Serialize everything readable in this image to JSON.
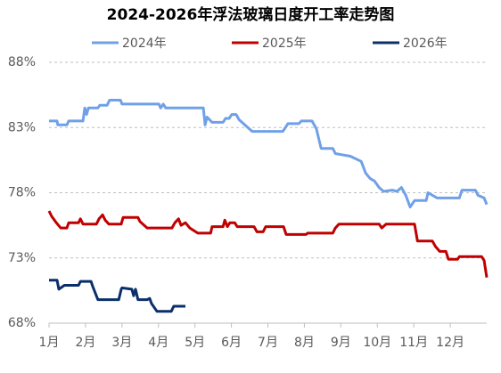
{
  "chart_data": {
    "type": "line",
    "title": "2024-2026年浮法玻璃日度开工率走势图",
    "xlim": [
      1,
      13
    ],
    "xticks": [
      {
        "value": 1,
        "label": "1月"
      },
      {
        "value": 2,
        "label": "2月"
      },
      {
        "value": 3,
        "label": "3月"
      },
      {
        "value": 4,
        "label": "4月"
      },
      {
        "value": 5,
        "label": "5月"
      },
      {
        "value": 6,
        "label": "6月"
      },
      {
        "value": 7,
        "label": "7月"
      },
      {
        "value": 8,
        "label": "8月"
      },
      {
        "value": 9,
        "label": "9月"
      },
      {
        "value": 10,
        "label": "10月"
      },
      {
        "value": 11,
        "label": "11月"
      },
      {
        "value": 12,
        "label": "12月"
      }
    ],
    "ylim": [
      68,
      88
    ],
    "yticks": [
      {
        "value": 68,
        "label": "68%"
      },
      {
        "value": 73,
        "label": "73%"
      },
      {
        "value": 78,
        "label": "78%"
      },
      {
        "value": 83,
        "label": "83%"
      },
      {
        "value": 88,
        "label": "88%"
      }
    ],
    "grid": true,
    "series": [
      {
        "name": "2024年",
        "color": "#6fa0e8",
        "x": [
          1.0,
          1.22,
          1.24,
          1.49,
          1.54,
          1.93,
          1.98,
          2.03,
          2.08,
          2.34,
          2.39,
          2.59,
          2.66,
          2.96,
          3.0,
          4.01,
          4.06,
          4.13,
          4.2,
          5.23,
          5.28,
          5.33,
          5.47,
          5.77,
          5.84,
          5.94,
          6.01,
          6.13,
          6.21,
          6.57,
          7.41,
          7.48,
          7.55,
          7.85,
          7.92,
          8.21,
          8.33,
          8.46,
          8.78,
          8.85,
          9.26,
          9.56,
          9.68,
          9.8,
          9.92,
          10.05,
          10.17,
          10.41,
          10.54,
          10.66,
          10.78,
          10.9,
          11.02,
          11.34,
          11.39,
          11.64,
          12.25,
          12.32,
          12.69,
          12.76,
          12.93,
          13.0
        ],
        "values": [
          83.5,
          83.5,
          83.2,
          83.2,
          83.5,
          83.5,
          84.5,
          84.0,
          84.5,
          84.5,
          84.7,
          84.7,
          85.1,
          85.1,
          84.8,
          84.8,
          84.5,
          84.8,
          84.5,
          84.5,
          83.2,
          83.8,
          83.4,
          83.4,
          83.7,
          83.7,
          84.0,
          84.0,
          83.6,
          82.7,
          82.7,
          83.0,
          83.3,
          83.3,
          83.5,
          83.5,
          82.9,
          81.4,
          81.4,
          81.0,
          80.8,
          80.4,
          79.5,
          79.1,
          78.9,
          78.4,
          78.1,
          78.2,
          78.1,
          78.4,
          77.8,
          76.9,
          77.4,
          77.4,
          78.0,
          77.6,
          77.6,
          78.2,
          78.2,
          77.8,
          77.6,
          77.1
        ]
      },
      {
        "name": "2025年",
        "color": "#c00000",
        "x": [
          1.0,
          1.07,
          1.2,
          1.32,
          1.49,
          1.54,
          1.81,
          1.86,
          1.93,
          2.3,
          2.37,
          2.47,
          2.54,
          2.64,
          2.98,
          3.03,
          3.44,
          3.49,
          3.69,
          4.37,
          4.45,
          4.55,
          4.62,
          4.74,
          4.86,
          5.08,
          5.43,
          5.47,
          5.77,
          5.82,
          5.89,
          5.96,
          6.09,
          6.16,
          6.62,
          6.7,
          6.87,
          6.94,
          7.43,
          7.5,
          8.04,
          8.09,
          8.78,
          8.85,
          8.95,
          10.05,
          10.12,
          10.24,
          11.02,
          11.1,
          11.51,
          11.59,
          11.71,
          11.88,
          11.95,
          12.2,
          12.25,
          12.86,
          12.93,
          13.0
        ],
        "values": [
          76.6,
          76.2,
          75.7,
          75.3,
          75.3,
          75.7,
          75.7,
          76.0,
          75.6,
          75.6,
          76.0,
          76.3,
          75.9,
          75.6,
          75.6,
          76.1,
          76.1,
          75.8,
          75.3,
          75.3,
          75.7,
          76.0,
          75.5,
          75.7,
          75.3,
          74.9,
          74.9,
          75.4,
          75.4,
          75.9,
          75.4,
          75.7,
          75.7,
          75.4,
          75.4,
          75.0,
          75.0,
          75.4,
          75.4,
          74.8,
          74.8,
          74.9,
          74.9,
          75.3,
          75.6,
          75.6,
          75.3,
          75.6,
          75.6,
          74.3,
          74.3,
          73.9,
          73.5,
          73.5,
          72.9,
          72.9,
          73.1,
          73.1,
          72.8,
          71.5
        ]
      },
      {
        "name": "2026年",
        "color": "#0b2f6b",
        "x": [
          1.0,
          1.22,
          1.27,
          1.42,
          1.81,
          1.86,
          2.15,
          2.2,
          2.34,
          2.91,
          2.98,
          3.0,
          3.27,
          3.32,
          3.37,
          3.44,
          3.69,
          3.76,
          3.81,
          3.96,
          4.35,
          4.42,
          4.74
        ],
        "values": [
          71.3,
          71.3,
          70.6,
          70.9,
          70.9,
          71.2,
          71.2,
          70.8,
          69.8,
          69.8,
          70.6,
          70.7,
          70.6,
          70.1,
          70.6,
          69.8,
          69.8,
          69.9,
          69.5,
          68.9,
          68.9,
          69.3,
          69.3
        ]
      }
    ]
  }
}
